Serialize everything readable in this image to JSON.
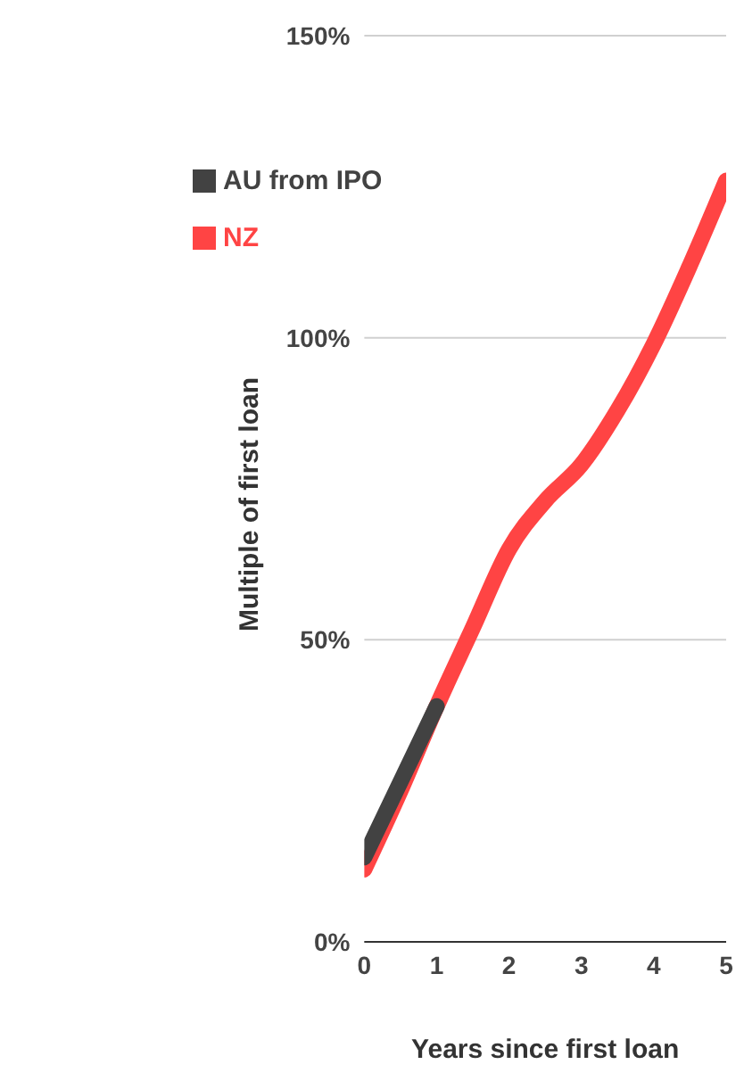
{
  "chart_data": {
    "type": "line",
    "xlabel": "Years since first loan",
    "ylabel": "Multiple of first loan",
    "xlim": [
      0,
      5
    ],
    "xticks": [
      0,
      1,
      2,
      3,
      4,
      5
    ],
    "ylim": [
      0,
      150
    ],
    "yticks": [
      {
        "value": 0,
        "label": "0%"
      },
      {
        "value": 50,
        "label": "50%"
      },
      {
        "value": 100,
        "label": "100%"
      },
      {
        "value": 150,
        "label": "150%"
      }
    ],
    "grid": "y",
    "legend": "top left",
    "marker": "none",
    "line_style": "solid",
    "series": [
      {
        "name": "NZ",
        "color": "#ff4444",
        "x": [
          0,
          0.5,
          1,
          1.5,
          2,
          2.5,
          3,
          3.5,
          4,
          4.5,
          5
        ],
        "values": [
          12,
          25,
          39,
          52,
          65,
          73,
          79,
          88,
          99,
          112,
          126
        ]
      },
      {
        "name": "AU from IPO",
        "color": "#424242",
        "x": [
          0,
          1
        ],
        "values": [
          14,
          39
        ]
      }
    ]
  }
}
